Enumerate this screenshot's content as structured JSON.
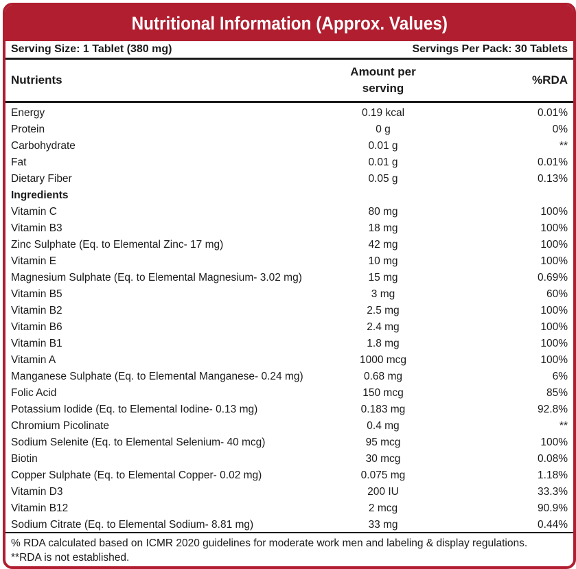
{
  "title": "Nutritional Information (Approx. Values)",
  "serving_size": "Serving Size: 1 Tablet (380 mg)",
  "servings_per_pack": "Servings Per Pack: 30 Tablets",
  "columns": {
    "nutrients": "Nutrients",
    "amount_line1": "Amount per",
    "amount_line2": "serving",
    "rda": "%RDA"
  },
  "nutrients": [
    {
      "name": "Energy",
      "amount": "0.19 kcal",
      "rda": "0.01%"
    },
    {
      "name": "Protein",
      "amount": "0 g",
      "rda": "0%"
    },
    {
      "name": "Carbohydrate",
      "amount": "0.01 g",
      "rda": "**"
    },
    {
      "name": "Fat",
      "amount": "0.01 g",
      "rda": "0.01%"
    },
    {
      "name": "Dietary Fiber",
      "amount": "0.05 g",
      "rda": "0.13%"
    }
  ],
  "ingredients_heading": "Ingredients",
  "ingredients": [
    {
      "name": "Vitamin C",
      "amount": "80 mg",
      "rda": "100%"
    },
    {
      "name": "Vitamin B3",
      "amount": "18 mg",
      "rda": "100%"
    },
    {
      "name": "Zinc Sulphate (Eq. to Elemental Zinc- 17 mg)",
      "amount": "42 mg",
      "rda": "100%"
    },
    {
      "name": "Vitamin E",
      "amount": "10 mg",
      "rda": "100%"
    },
    {
      "name": "Magnesium Sulphate (Eq. to Elemental Magnesium- 3.02 mg)",
      "amount": "15 mg",
      "rda": "0.69%"
    },
    {
      "name": "Vitamin B5",
      "amount": "3 mg",
      "rda": "60%"
    },
    {
      "name": "Vitamin B2",
      "amount": "2.5 mg",
      "rda": "100%"
    },
    {
      "name": "Vitamin B6",
      "amount": "2.4 mg",
      "rda": "100%"
    },
    {
      "name": "Vitamin B1",
      "amount": "1.8 mg",
      "rda": "100%"
    },
    {
      "name": "Vitamin A",
      "amount": "1000 mcg",
      "rda": "100%"
    },
    {
      "name": "Manganese Sulphate (Eq. to Elemental Manganese- 0.24 mg)",
      "amount": "0.68 mg",
      "rda": "6%"
    },
    {
      "name": "Folic Acid",
      "amount": "150 mcg",
      "rda": "85%"
    },
    {
      "name": "Potassium Iodide (Eq. to Elemental Iodine- 0.13 mg)",
      "amount": "0.183 mg",
      "rda": "92.8%"
    },
    {
      "name": "Chromium Picolinate",
      "amount": "0.4 mg",
      "rda": "**"
    },
    {
      "name": "Sodium Selenite (Eq. to Elemental Selenium- 40 mcg)",
      "amount": "95 mcg",
      "rda": "100%"
    },
    {
      "name": "Biotin",
      "amount": "30 mcg",
      "rda": "0.08%"
    },
    {
      "name": "Copper Sulphate (Eq. to Elemental Copper- 0.02 mg)",
      "amount": "0.075 mg",
      "rda": "1.18%"
    },
    {
      "name": "Vitamin D3",
      "amount": "200 IU",
      "rda": "33.3%"
    },
    {
      "name": "Vitamin B12",
      "amount": "2 mcg",
      "rda": "90.9%"
    },
    {
      "name": "Sodium Citrate (Eq. to Elemental Sodium- 8.81 mg)",
      "amount": "33 mg",
      "rda": "0.44%"
    }
  ],
  "footnote_1": "% RDA calculated based on ICMR 2020 guidelines for moderate work men and labeling & display regulations.",
  "footnote_2": "**RDA is not established.",
  "colors": {
    "accent": "#b01e2f",
    "text": "#1a1a1a",
    "background": "#ffffff"
  }
}
